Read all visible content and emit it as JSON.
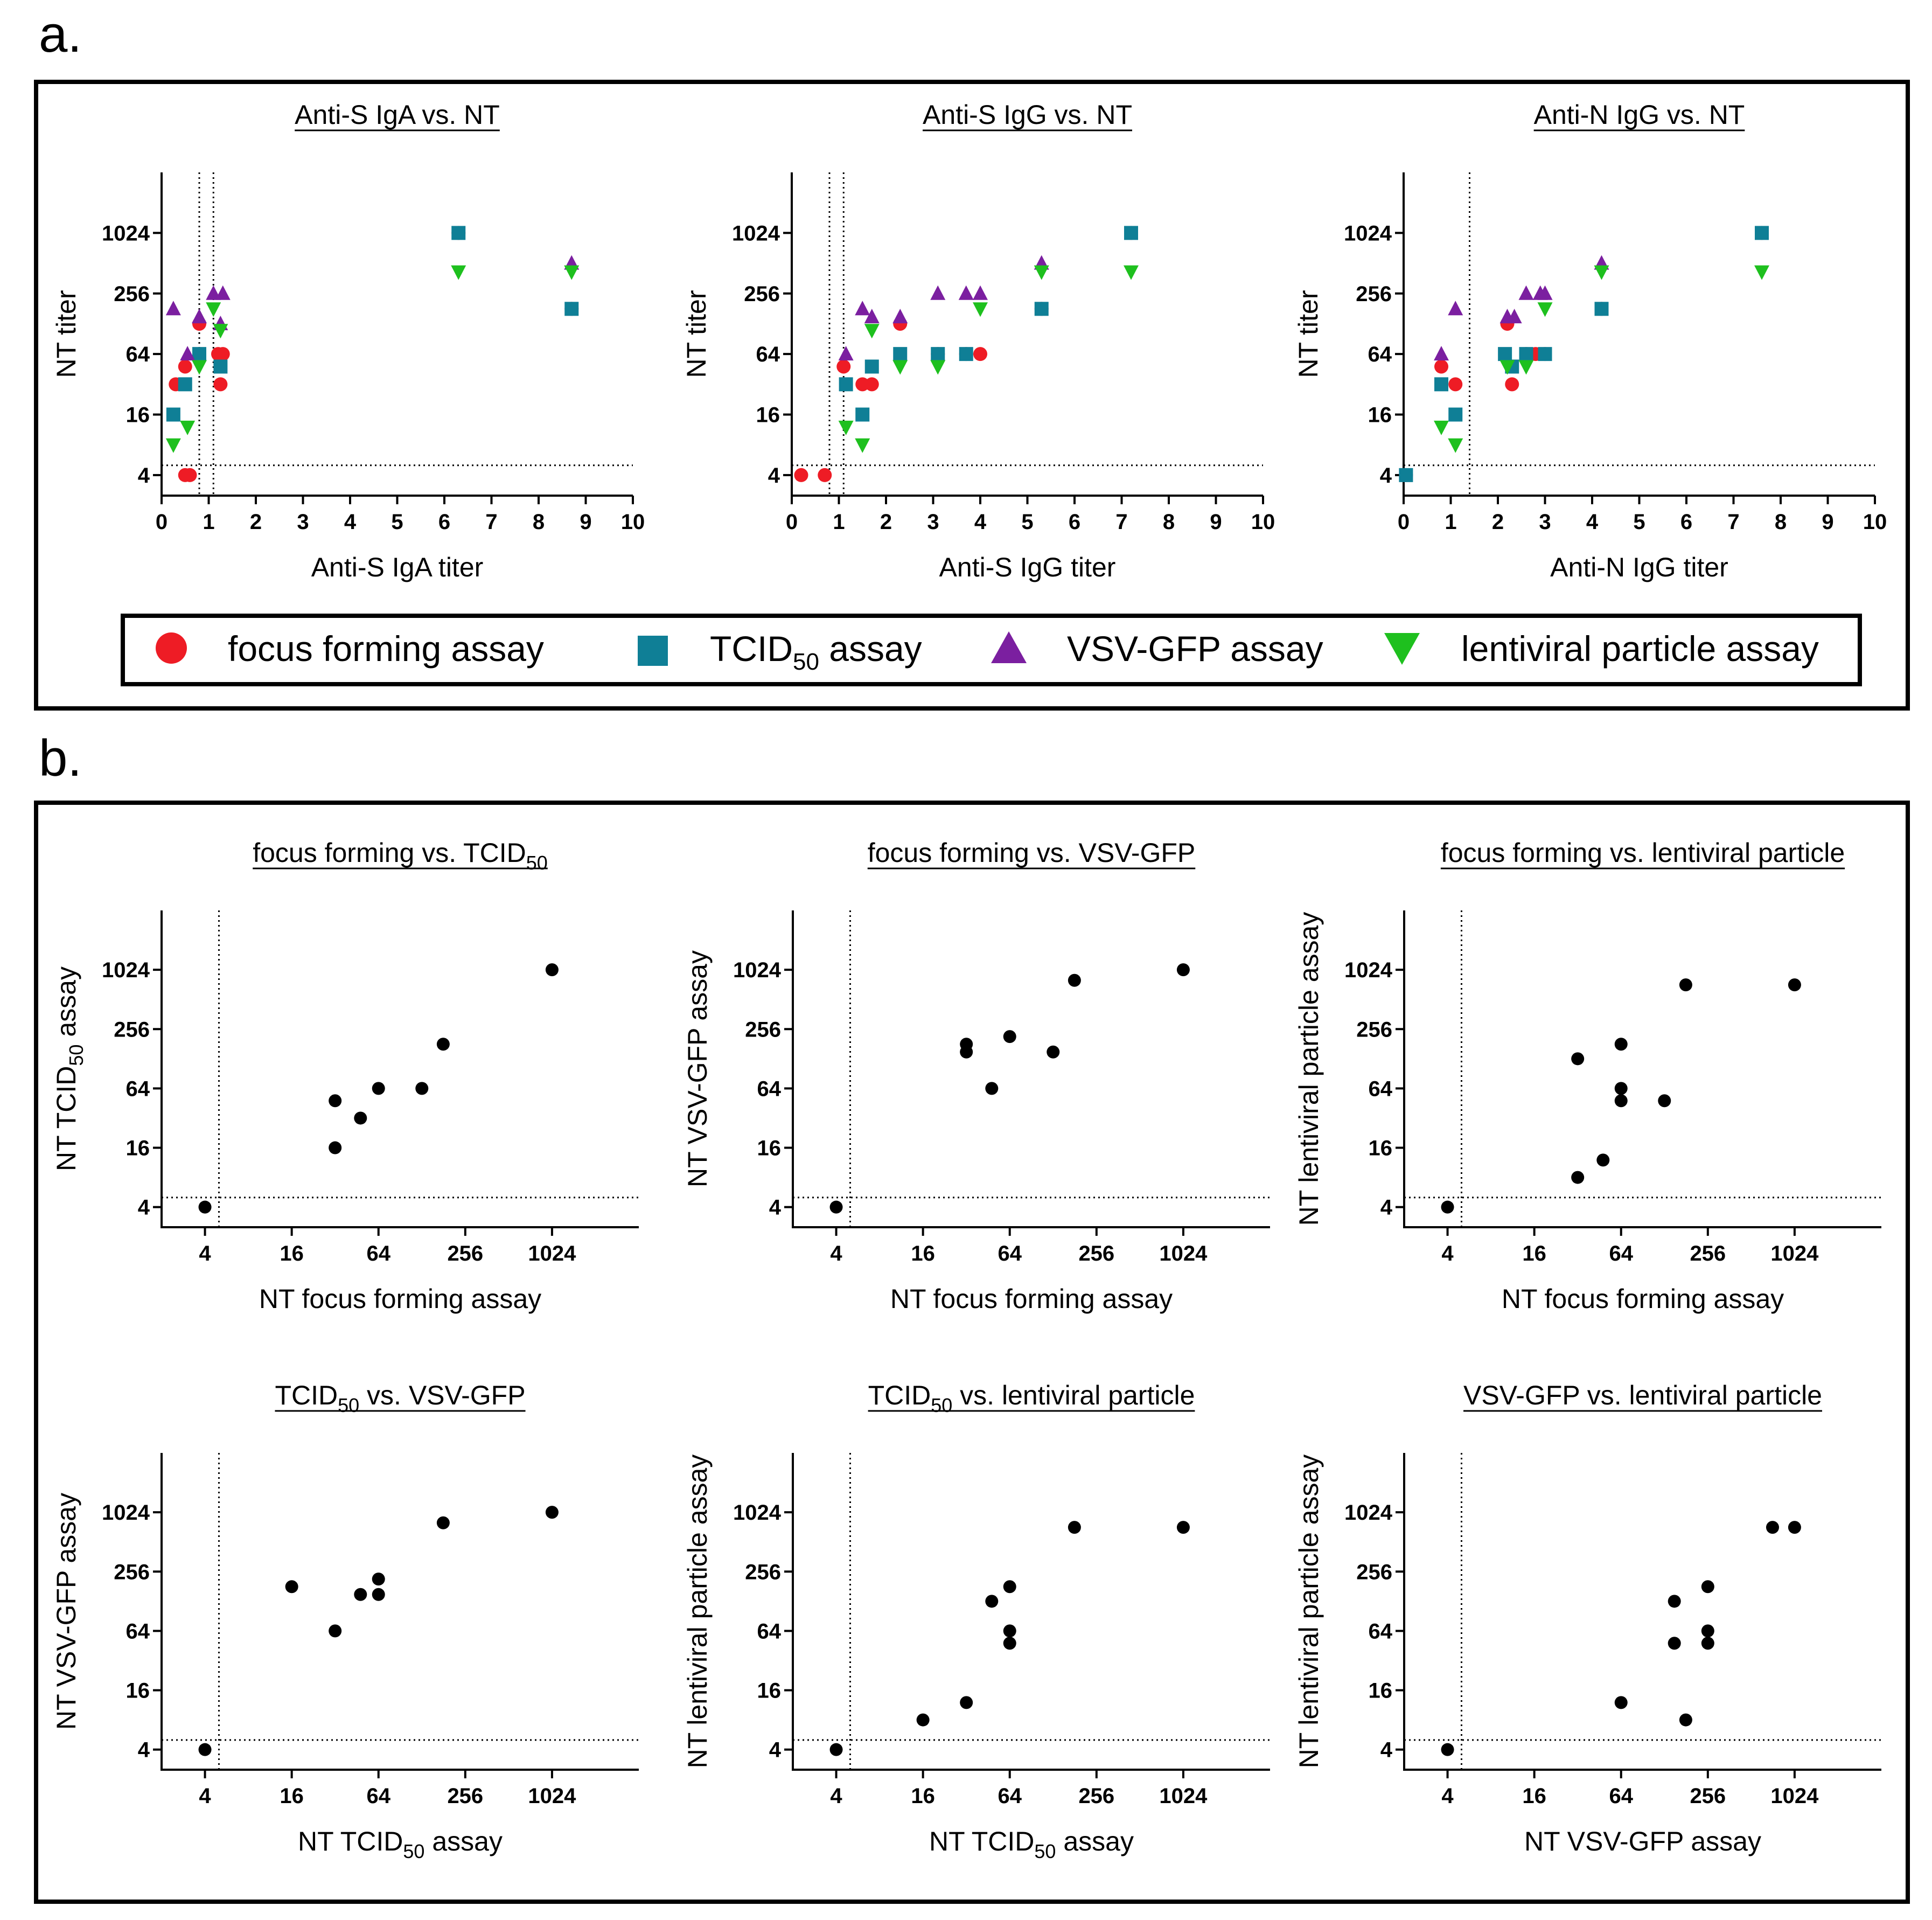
{
  "panel_labels": {
    "a": "a.",
    "b": "b."
  },
  "legend": [
    {
      "key": "ff",
      "label": "focus forming assay",
      "sub": "",
      "suffix": "",
      "shape": "circle",
      "color": "#ee1c25"
    },
    {
      "key": "tc",
      "label": "TCID",
      "sub": "50",
      "suffix": " assay",
      "shape": "square",
      "color": "#0f7f96"
    },
    {
      "key": "vsv",
      "label": "VSV-GFP assay",
      "sub": "",
      "suffix": "",
      "shape": "triangle-up",
      "color": "#7b1fa0"
    },
    {
      "key": "lenti",
      "label": "lentiviral particle assay",
      "sub": "",
      "suffix": "",
      "shape": "triangle-down",
      "color": "#1ec01e"
    }
  ],
  "chart_data": [
    {
      "type": "scatter",
      "panel": "a",
      "title": "Anti-S IgA vs. NT",
      "title_sub": "",
      "title_suffix": "",
      "xlabel": "Anti-S IgA titer",
      "xlabel_sub": "",
      "xlabel_suffix": "",
      "ylabel": "NT titer",
      "ylabel_sub": "",
      "ylabel_suffix": "",
      "xscale": "linear",
      "xlim": [
        0,
        10
      ],
      "xticks": [
        0,
        1,
        2,
        3,
        4,
        5,
        6,
        7,
        8,
        9,
        10
      ],
      "yscale": "log2",
      "ylim": [
        2.5,
        4096
      ],
      "yticks": [
        4,
        16,
        64,
        256,
        1024
      ],
      "ref_x": [
        0.8,
        1.1
      ],
      "ref_y": 5,
      "series": [
        {
          "name": "focus forming assay",
          "key": "ff",
          "points": [
            [
              0.3,
              32
            ],
            [
              0.5,
              4
            ],
            [
              0.6,
              4
            ],
            [
              0.5,
              48
            ],
            [
              0.8,
              128
            ],
            [
              1.2,
              64
            ],
            [
              1.3,
              64
            ],
            [
              1.25,
              32
            ],
            [
              6.3,
              1024
            ],
            [
              8.7,
              180
            ]
          ]
        },
        {
          "name": "TCID50 assay",
          "key": "tc",
          "points": [
            [
              0.25,
              16
            ],
            [
              0.5,
              32
            ],
            [
              0.8,
              64
            ],
            [
              1.25,
              48
            ],
            [
              6.3,
              1024
            ],
            [
              8.7,
              180
            ]
          ]
        },
        {
          "name": "VSV-GFP assay",
          "key": "vsv",
          "points": [
            [
              0.25,
              180
            ],
            [
              0.55,
              64
            ],
            [
              0.8,
              150
            ],
            [
              1.1,
              256
            ],
            [
              1.3,
              256
            ],
            [
              1.25,
              128
            ],
            [
              8.7,
              512
            ]
          ]
        },
        {
          "name": "lentiviral particle assay",
          "key": "lenti",
          "points": [
            [
              0.25,
              8
            ],
            [
              0.55,
              12
            ],
            [
              0.8,
              48
            ],
            [
              1.1,
              180
            ],
            [
              1.25,
              110
            ],
            [
              6.3,
              420
            ],
            [
              8.7,
              420
            ]
          ]
        }
      ]
    },
    {
      "type": "scatter",
      "panel": "a",
      "title": "Anti-S IgG vs. NT",
      "title_sub": "",
      "title_suffix": "",
      "xlabel": "Anti-S IgG titer",
      "xlabel_sub": "",
      "xlabel_suffix": "",
      "ylabel": "NT titer",
      "ylabel_sub": "",
      "ylabel_suffix": "",
      "xscale": "linear",
      "xlim": [
        0,
        10
      ],
      "xticks": [
        0,
        1,
        2,
        3,
        4,
        5,
        6,
        7,
        8,
        9,
        10
      ],
      "yscale": "log2",
      "ylim": [
        2.5,
        4096
      ],
      "yticks": [
        4,
        16,
        64,
        256,
        1024
      ],
      "ref_x": [
        0.8,
        1.1
      ],
      "ref_y": 5,
      "series": [
        {
          "name": "focus forming assay",
          "key": "ff",
          "points": [
            [
              0.2,
              4
            ],
            [
              0.7,
              4
            ],
            [
              1.1,
              48
            ],
            [
              1.5,
              32
            ],
            [
              1.7,
              32
            ],
            [
              2.3,
              128
            ],
            [
              3.1,
              64
            ],
            [
              3.7,
              64
            ],
            [
              4.0,
              64
            ],
            [
              5.3,
              180
            ],
            [
              7.2,
              1024
            ]
          ]
        },
        {
          "name": "TCID50 assay",
          "key": "tc",
          "points": [
            [
              1.15,
              32
            ],
            [
              1.5,
              16
            ],
            [
              1.7,
              48
            ],
            [
              2.3,
              64
            ],
            [
              3.1,
              64
            ],
            [
              3.7,
              64
            ],
            [
              5.3,
              180
            ],
            [
              7.2,
              1024
            ]
          ]
        },
        {
          "name": "VSV-GFP assay",
          "key": "vsv",
          "points": [
            [
              1.15,
              64
            ],
            [
              1.5,
              180
            ],
            [
              1.7,
              150
            ],
            [
              2.3,
              150
            ],
            [
              3.1,
              256
            ],
            [
              3.7,
              256
            ],
            [
              4.0,
              256
            ],
            [
              5.3,
              512
            ]
          ]
        },
        {
          "name": "lentiviral particle assay",
          "key": "lenti",
          "points": [
            [
              1.15,
              12
            ],
            [
              1.5,
              8
            ],
            [
              1.7,
              110
            ],
            [
              2.3,
              48
            ],
            [
              3.1,
              48
            ],
            [
              4.0,
              180
            ],
            [
              5.3,
              420
            ],
            [
              7.2,
              420
            ]
          ]
        }
      ]
    },
    {
      "type": "scatter",
      "panel": "a",
      "title": "Anti-N IgG vs. NT",
      "title_sub": "",
      "title_suffix": "",
      "xlabel": "Anti-N IgG titer",
      "xlabel_sub": "",
      "xlabel_suffix": "",
      "ylabel": "NT titer",
      "ylabel_sub": "",
      "ylabel_suffix": "",
      "xscale": "linear",
      "xlim": [
        0,
        10
      ],
      "xticks": [
        0,
        1,
        2,
        3,
        4,
        5,
        6,
        7,
        8,
        9,
        10
      ],
      "yscale": "log2",
      "ylim": [
        2.5,
        4096
      ],
      "yticks": [
        4,
        16,
        64,
        256,
        1024
      ],
      "ref_x": [
        1.4
      ],
      "ref_y": 5,
      "series": [
        {
          "name": "focus forming assay",
          "key": "ff",
          "points": [
            [
              0.05,
              4
            ],
            [
              0.8,
              48
            ],
            [
              1.1,
              32
            ],
            [
              2.2,
              128
            ],
            [
              2.3,
              32
            ],
            [
              2.6,
              64
            ],
            [
              2.8,
              64
            ],
            [
              3.0,
              64
            ],
            [
              4.2,
              180
            ],
            [
              7.6,
              1024
            ]
          ]
        },
        {
          "name": "TCID50 assay",
          "key": "tc",
          "points": [
            [
              0.05,
              4
            ],
            [
              0.8,
              32
            ],
            [
              1.1,
              16
            ],
            [
              2.15,
              64
            ],
            [
              2.3,
              48
            ],
            [
              2.6,
              64
            ],
            [
              3.0,
              64
            ],
            [
              4.2,
              180
            ],
            [
              7.6,
              1024
            ]
          ]
        },
        {
          "name": "VSV-GFP assay",
          "key": "vsv",
          "points": [
            [
              0.8,
              64
            ],
            [
              1.1,
              180
            ],
            [
              2.2,
              150
            ],
            [
              2.35,
              150
            ],
            [
              2.6,
              256
            ],
            [
              2.9,
              256
            ],
            [
              3.0,
              256
            ],
            [
              4.2,
              512
            ]
          ]
        },
        {
          "name": "lentiviral particle assay",
          "key": "lenti",
          "points": [
            [
              0.8,
              12
            ],
            [
              1.1,
              8
            ],
            [
              2.2,
              48
            ],
            [
              2.6,
              48
            ],
            [
              3.0,
              180
            ],
            [
              4.2,
              420
            ],
            [
              7.6,
              420
            ]
          ]
        }
      ]
    },
    {
      "type": "scatter",
      "panel": "b",
      "title": "focus forming vs. TCID",
      "title_sub": "50",
      "title_suffix": "",
      "xlabel": "NT focus forming assay",
      "xlabel_sub": "",
      "xlabel_suffix": "",
      "ylabel": "NT TCID",
      "ylabel_sub": "50",
      "ylabel_suffix": " assay",
      "xscale": "log2",
      "xlim": [
        2,
        4096
      ],
      "xticks": [
        4,
        16,
        64,
        256,
        1024
      ],
      "yscale": "log2",
      "ylim": [
        2.5,
        4096
      ],
      "yticks": [
        4,
        16,
        64,
        256,
        1024
      ],
      "ref_x": [
        5
      ],
      "ref_y": 5,
      "series": [
        {
          "name": "points",
          "key": "dot",
          "points": [
            [
              4,
              4
            ],
            [
              32,
              16
            ],
            [
              32,
              48
            ],
            [
              48,
              32
            ],
            [
              64,
              64
            ],
            [
              128,
              64
            ],
            [
              180,
              180
            ],
            [
              1024,
              1024
            ]
          ]
        }
      ]
    },
    {
      "type": "scatter",
      "panel": "b",
      "title": "focus forming vs. VSV-GFP",
      "title_sub": "",
      "title_suffix": "",
      "xlabel": "NT focus forming assay",
      "xlabel_sub": "",
      "xlabel_suffix": "",
      "ylabel": "NT VSV-GFP assay",
      "ylabel_sub": "",
      "ylabel_suffix": "",
      "xscale": "log2",
      "xlim": [
        2,
        4096
      ],
      "xticks": [
        4,
        16,
        64,
        256,
        1024
      ],
      "yscale": "log2",
      "ylim": [
        2.5,
        4096
      ],
      "yticks": [
        4,
        16,
        64,
        256,
        1024
      ],
      "ref_x": [
        5
      ],
      "ref_y": 5,
      "series": [
        {
          "name": "points",
          "key": "dot",
          "points": [
            [
              4,
              4
            ],
            [
              32,
              180
            ],
            [
              32,
              150
            ],
            [
              48,
              64
            ],
            [
              64,
              215
            ],
            [
              128,
              150
            ],
            [
              180,
              800
            ],
            [
              1024,
              1024
            ]
          ]
        }
      ]
    },
    {
      "type": "scatter",
      "panel": "b",
      "title": "focus forming vs. lentiviral particle",
      "title_sub": "",
      "title_suffix": "",
      "xlabel": "NT focus forming assay",
      "xlabel_sub": "",
      "xlabel_suffix": "",
      "ylabel": "NT lentiviral particle assay",
      "ylabel_sub": "",
      "ylabel_suffix": "",
      "xscale": "log2",
      "xlim": [
        2,
        4096
      ],
      "xticks": [
        4,
        16,
        64,
        256,
        1024
      ],
      "yscale": "log2",
      "ylim": [
        2.5,
        4096
      ],
      "yticks": [
        4,
        16,
        64,
        256,
        1024
      ],
      "ref_x": [
        5
      ],
      "ref_y": 5,
      "series": [
        {
          "name": "points",
          "key": "dot",
          "points": [
            [
              4,
              4
            ],
            [
              32,
              8
            ],
            [
              32,
              128
            ],
            [
              48,
              12
            ],
            [
              64,
              180
            ],
            [
              64,
              64
            ],
            [
              64,
              48
            ],
            [
              128,
              48
            ],
            [
              180,
              720
            ],
            [
              1024,
              720
            ]
          ]
        }
      ]
    },
    {
      "type": "scatter",
      "panel": "b",
      "title": "TCID",
      "title_sub": "50",
      "title_suffix": " vs. VSV-GFP",
      "xlabel": "NT TCID",
      "xlabel_sub": "50",
      "xlabel_suffix": " assay",
      "ylabel": "NT VSV-GFP assay",
      "ylabel_sub": "",
      "ylabel_suffix": "",
      "xscale": "log2",
      "xlim": [
        2,
        4096
      ],
      "xticks": [
        4,
        16,
        64,
        256,
        1024
      ],
      "yscale": "log2",
      "ylim": [
        2.5,
        4096
      ],
      "yticks": [
        4,
        16,
        64,
        256,
        1024
      ],
      "ref_x": [
        5
      ],
      "ref_y": 5,
      "series": [
        {
          "name": "points",
          "key": "dot",
          "points": [
            [
              4,
              4
            ],
            [
              16,
              180
            ],
            [
              32,
              64
            ],
            [
              48,
              150
            ],
            [
              64,
              150
            ],
            [
              64,
              215
            ],
            [
              180,
              800
            ],
            [
              1024,
              1024
            ]
          ]
        }
      ]
    },
    {
      "type": "scatter",
      "panel": "b",
      "title": "TCID",
      "title_sub": "50",
      "title_suffix": " vs. lentiviral particle",
      "xlabel": "NT TCID",
      "xlabel_sub": "50",
      "xlabel_suffix": " assay",
      "ylabel": "NT lentiviral particle assay",
      "ylabel_sub": "",
      "ylabel_suffix": "",
      "xscale": "log2",
      "xlim": [
        2,
        4096
      ],
      "xticks": [
        4,
        16,
        64,
        256,
        1024
      ],
      "yscale": "log2",
      "ylim": [
        2.5,
        4096
      ],
      "yticks": [
        4,
        16,
        64,
        256,
        1024
      ],
      "ref_x": [
        5
      ],
      "ref_y": 5,
      "series": [
        {
          "name": "points",
          "key": "dot",
          "points": [
            [
              4,
              4
            ],
            [
              16,
              8
            ],
            [
              32,
              12
            ],
            [
              48,
              128
            ],
            [
              64,
              180
            ],
            [
              64,
              64
            ],
            [
              64,
              48
            ],
            [
              180,
              720
            ],
            [
              1024,
              720
            ]
          ]
        }
      ]
    },
    {
      "type": "scatter",
      "panel": "b",
      "title": "VSV-GFP vs. lentiviral particle",
      "title_sub": "",
      "title_suffix": "",
      "xlabel": "NT VSV-GFP assay",
      "xlabel_sub": "",
      "xlabel_suffix": "",
      "ylabel": "NT lentiviral particle assay",
      "ylabel_sub": "",
      "ylabel_suffix": "",
      "xscale": "log2",
      "xlim": [
        2,
        4096
      ],
      "xticks": [
        4,
        16,
        64,
        256,
        1024
      ],
      "yscale": "log2",
      "ylim": [
        2.5,
        4096
      ],
      "yticks": [
        4,
        16,
        64,
        256,
        1024
      ],
      "ref_x": [
        5
      ],
      "ref_y": 5,
      "series": [
        {
          "name": "points",
          "key": "dot",
          "points": [
            [
              4,
              4
            ],
            [
              64,
              12
            ],
            [
              150,
              128
            ],
            [
              150,
              48
            ],
            [
              180,
              8
            ],
            [
              256,
              180
            ],
            [
              256,
              64
            ],
            [
              256,
              48
            ],
            [
              720,
              720
            ],
            [
              1024,
              720
            ]
          ]
        }
      ]
    }
  ]
}
